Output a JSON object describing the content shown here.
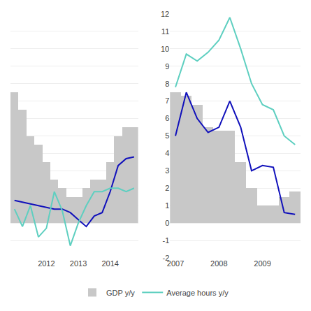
{
  "chart_data": [
    {
      "type": "bar",
      "categories": [
        null,
        null,
        null,
        null,
        "2012",
        null,
        null,
        null,
        "2013",
        null,
        null,
        null,
        "2014",
        null,
        null,
        null
      ],
      "series": [
        {
          "name": "GDP y/y",
          "type": "bar",
          "color": "#c8c8c8",
          "values": [
            7.5,
            6.5,
            5.0,
            4.5,
            3.5,
            2.5,
            2.0,
            1.5,
            1.5,
            2.0,
            2.5,
            2.5,
            3.5,
            5.0,
            5.5,
            5.5
          ]
        },
        {
          "type": "line",
          "color": "#1010bb",
          "values": [
            1.3,
            1.2,
            1.1,
            1.0,
            0.9,
            0.8,
            0.8,
            0.6,
            0.2,
            -0.2,
            0.4,
            0.6,
            1.8,
            3.3,
            3.7,
            3.8
          ]
        },
        {
          "name": "Average hours y/y",
          "type": "line",
          "color": "#5ecfc0",
          "values": [
            0.8,
            -0.2,
            1.0,
            -0.8,
            -0.3,
            1.8,
            0.7,
            -1.3,
            0.0,
            1.0,
            1.8,
            1.8,
            2.0,
            2.0,
            1.8,
            2.0
          ]
        }
      ],
      "ylim": [
        -2,
        12
      ],
      "yticks": [
        -2,
        -1,
        0,
        1,
        2,
        3,
        4,
        5,
        6,
        7,
        8,
        9,
        10,
        11,
        12
      ],
      "grid": true,
      "tick_labels": "x",
      "legend": "bottom"
    },
    {
      "type": "bar",
      "categories": [
        "2007",
        null,
        null,
        null,
        "2008",
        null,
        null,
        null,
        "2009",
        null,
        null,
        null
      ],
      "series": [
        {
          "name": "GDP y/y",
          "type": "bar",
          "color": "#c8c8c8",
          "values": [
            7.5,
            7.3,
            6.8,
            5.5,
            5.3,
            5.3,
            3.5,
            2.0,
            1.0,
            1.0,
            1.5,
            1.8
          ]
        },
        {
          "type": "line",
          "color": "#1010bb",
          "values": [
            5.0,
            7.5,
            6.0,
            5.2,
            5.5,
            7.0,
            5.5,
            3.0,
            3.3,
            3.2,
            0.6,
            0.5
          ]
        },
        {
          "name": "Average hours y/y",
          "type": "line",
          "color": "#5ecfc0",
          "values": [
            7.8,
            9.7,
            9.3,
            9.8,
            10.5,
            11.8,
            10.0,
            8.0,
            6.8,
            6.5,
            5.0,
            4.5
          ]
        }
      ],
      "ylim": [
        -2,
        12
      ],
      "yticks": [
        -2,
        -1,
        0,
        1,
        2,
        3,
        4,
        5,
        6,
        7,
        8,
        9,
        10,
        11,
        12
      ],
      "grid": true,
      "legend": "bottom"
    }
  ]
}
